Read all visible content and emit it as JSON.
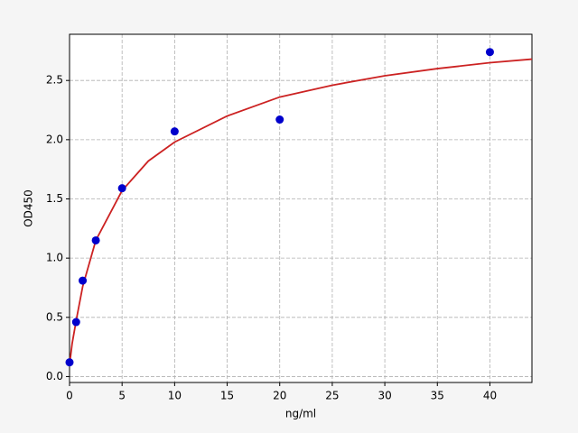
{
  "chart_data": {
    "type": "scatter",
    "xlabel": "ng/ml",
    "ylabel": "OD450",
    "xlim": [
      0,
      44
    ],
    "ylim": [
      -0.05,
      2.89
    ],
    "xticks": [
      0,
      5,
      10,
      15,
      20,
      25,
      30,
      35,
      40
    ],
    "yticks": [
      {
        "value": 0,
        "label": "0.0"
      },
      0.5,
      {
        "value": 1,
        "label": "1.0"
      },
      1.5,
      {
        "value": 2,
        "label": "2.0"
      },
      2.5
    ],
    "grid": true,
    "series": [
      {
        "type": "line",
        "color": "#cc2222",
        "x": [
          0,
          0.25,
          0.625,
          1.25,
          2.5,
          5,
          7.5,
          10,
          15,
          20,
          25,
          30,
          35,
          40,
          44
        ],
        "values": [
          0.1,
          0.28,
          0.47,
          0.76,
          1.15,
          1.57,
          1.82,
          1.98,
          2.2,
          2.36,
          2.46,
          2.54,
          2.6,
          2.65,
          2.68
        ]
      },
      {
        "type": "scatter",
        "color": "#0000cc",
        "x": [
          0,
          0.625,
          1.25,
          2.5,
          5,
          10,
          20,
          40
        ],
        "values": [
          0.12,
          0.46,
          0.81,
          1.15,
          1.59,
          2.07,
          2.17,
          2.74
        ]
      }
    ]
  }
}
